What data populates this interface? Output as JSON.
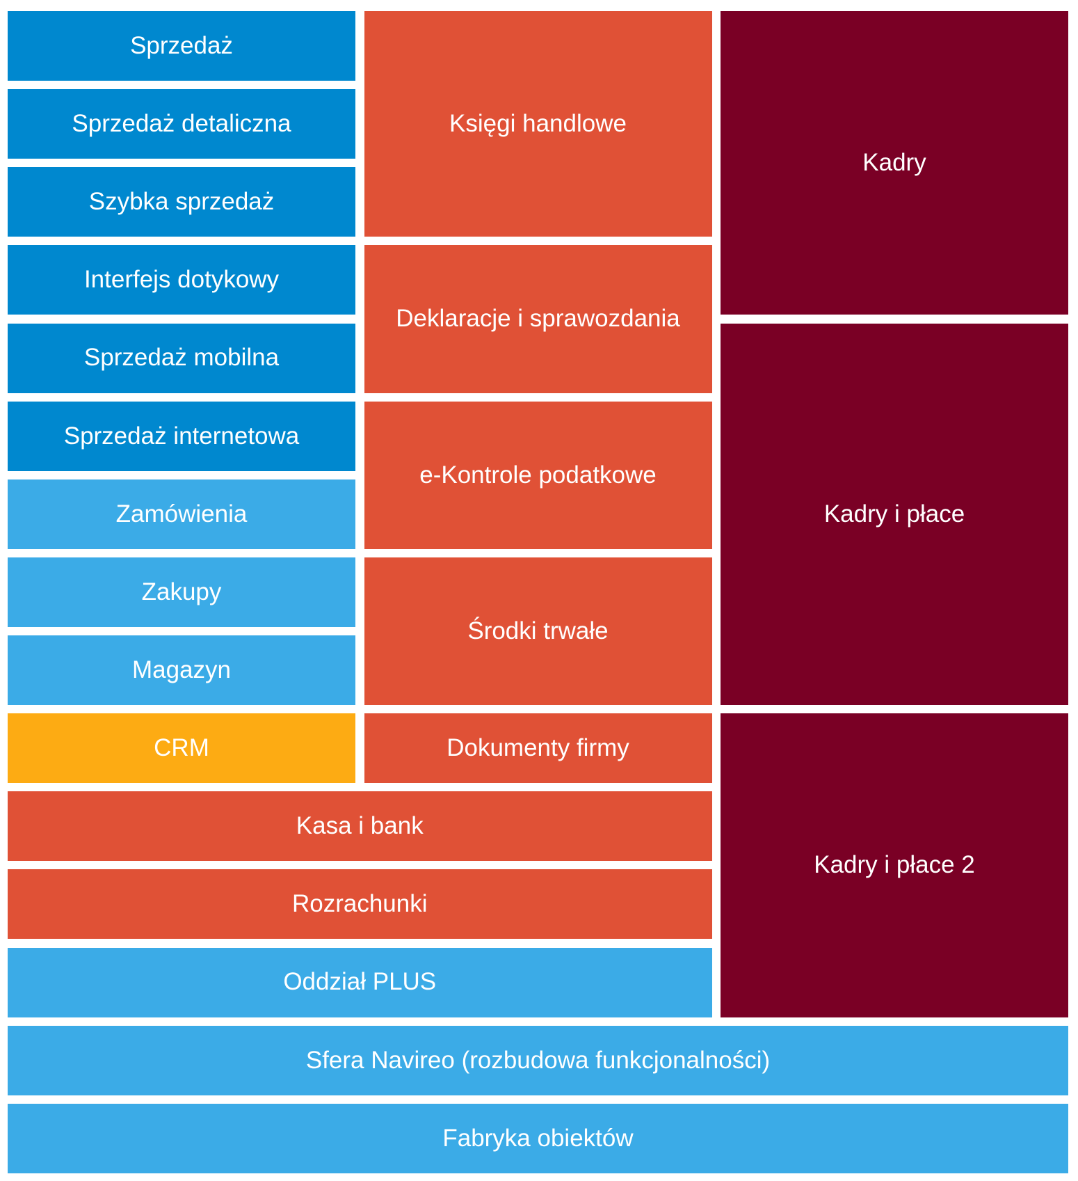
{
  "colors": {
    "blue": "#0088cf",
    "light_blue": "#3babe7",
    "orange": "#fdab13",
    "red": "#e05136",
    "maroon": "#7a0025"
  },
  "modules": {
    "sprzedaz": "Sprzedaż",
    "sprzedaz_detaliczna": "Sprzedaż detaliczna",
    "szybka_sprzedaz": "Szybka sprzedaż",
    "interfejs_dotykowy": "Interfejs dotykowy",
    "sprzedaz_mobilna": "Sprzedaż mobilna",
    "sprzedaz_internetowa": "Sprzedaż internetowa",
    "zamowienia": "Zamówienia",
    "zakupy": "Zakupy",
    "magazyn": "Magazyn",
    "crm": "CRM",
    "ksiegi_handlowe": "Księgi handlowe",
    "deklaracje": "Deklaracje i sprawozdania",
    "e_kontrole": "e-Kontrole podatkowe",
    "srodki_trwale": "Środki trwałe",
    "dokumenty_firmy": "Dokumenty firmy",
    "kasa_i_bank": "Kasa i bank",
    "rozrachunki": "Rozrachunki",
    "oddzial_plus": "Oddział PLUS",
    "kadry": "Kadry",
    "kadry_i_place": "Kadry i płace",
    "kadry_i_place_2": "Kadry i płace 2",
    "sfera_navireo": "Sfera Navireo (rozbudowa funkcjonalności)",
    "fabryka_obiektow": "Fabryka obiektów"
  }
}
